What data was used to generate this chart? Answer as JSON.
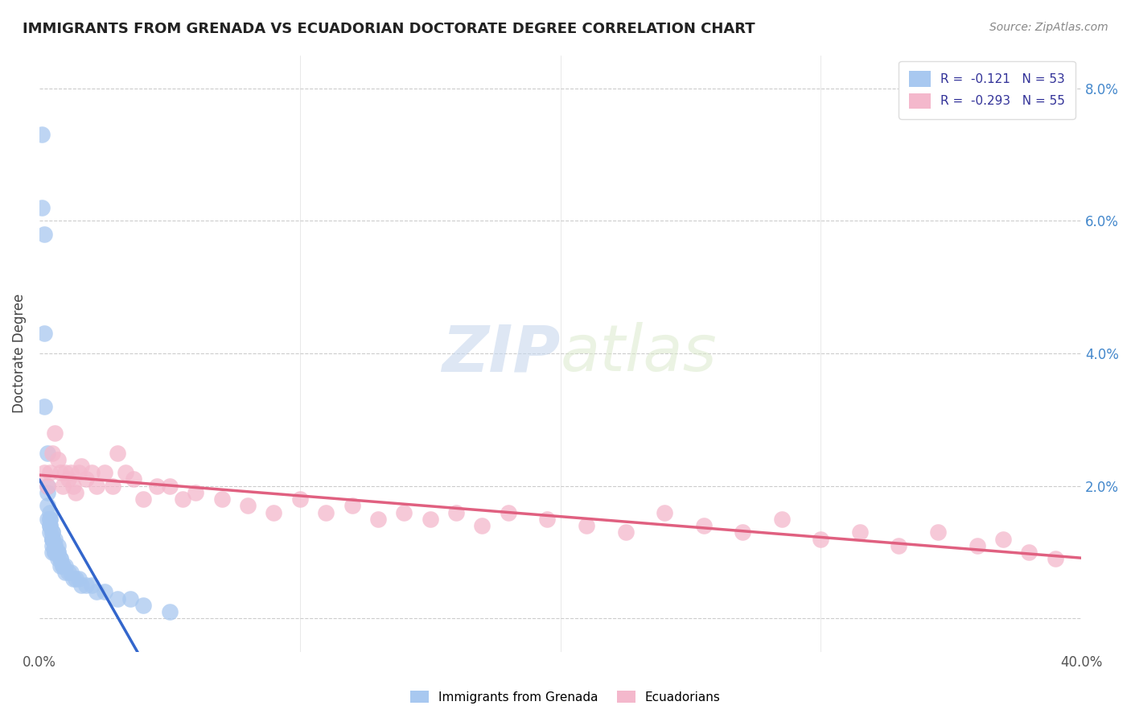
{
  "title": "IMMIGRANTS FROM GRENADA VS ECUADORIAN DOCTORATE DEGREE CORRELATION CHART",
  "source": "Source: ZipAtlas.com",
  "ylabel": "Doctorate Degree",
  "xlim": [
    0.0,
    0.4
  ],
  "ylim": [
    -0.005,
    0.085
  ],
  "yticks": [
    0.0,
    0.02,
    0.04,
    0.06,
    0.08
  ],
  "ytick_labels_right": [
    "",
    "2.0%",
    "4.0%",
    "6.0%",
    "8.0%"
  ],
  "series1_label": "Immigrants from Grenada",
  "series1_R": -0.121,
  "series1_N": 53,
  "series1_color": "#a8c8f0",
  "series1_line_color": "#3366cc",
  "series2_label": "Ecuadorians",
  "series2_R": -0.293,
  "series2_N": 55,
  "series2_color": "#f4b8cc",
  "series2_line_color": "#e06080",
  "watermark_zip": "ZIP",
  "watermark_atlas": "atlas",
  "background_color": "#ffffff",
  "grid_color": "#cccccc",
  "title_color": "#222222",
  "series1_x": [
    0.001,
    0.001,
    0.002,
    0.002,
    0.002,
    0.003,
    0.003,
    0.003,
    0.003,
    0.003,
    0.004,
    0.004,
    0.004,
    0.004,
    0.004,
    0.004,
    0.005,
    0.005,
    0.005,
    0.005,
    0.005,
    0.005,
    0.005,
    0.006,
    0.006,
    0.006,
    0.006,
    0.006,
    0.007,
    0.007,
    0.007,
    0.007,
    0.008,
    0.008,
    0.008,
    0.009,
    0.009,
    0.01,
    0.01,
    0.011,
    0.012,
    0.013,
    0.014,
    0.015,
    0.016,
    0.018,
    0.02,
    0.022,
    0.025,
    0.03,
    0.035,
    0.04,
    0.05
  ],
  "series1_y": [
    0.073,
    0.062,
    0.058,
    0.043,
    0.032,
    0.025,
    0.02,
    0.019,
    0.017,
    0.015,
    0.016,
    0.015,
    0.015,
    0.014,
    0.014,
    0.013,
    0.013,
    0.013,
    0.012,
    0.012,
    0.012,
    0.011,
    0.01,
    0.012,
    0.011,
    0.011,
    0.01,
    0.01,
    0.011,
    0.01,
    0.01,
    0.009,
    0.009,
    0.009,
    0.008,
    0.008,
    0.008,
    0.008,
    0.007,
    0.007,
    0.007,
    0.006,
    0.006,
    0.006,
    0.005,
    0.005,
    0.005,
    0.004,
    0.004,
    0.003,
    0.003,
    0.002,
    0.001
  ],
  "series2_x": [
    0.002,
    0.003,
    0.004,
    0.005,
    0.006,
    0.007,
    0.008,
    0.009,
    0.01,
    0.011,
    0.012,
    0.013,
    0.014,
    0.015,
    0.016,
    0.018,
    0.02,
    0.022,
    0.025,
    0.028,
    0.03,
    0.033,
    0.036,
    0.04,
    0.045,
    0.05,
    0.055,
    0.06,
    0.07,
    0.08,
    0.09,
    0.1,
    0.11,
    0.12,
    0.13,
    0.14,
    0.15,
    0.16,
    0.17,
    0.18,
    0.195,
    0.21,
    0.225,
    0.24,
    0.255,
    0.27,
    0.285,
    0.3,
    0.315,
    0.33,
    0.345,
    0.36,
    0.37,
    0.38,
    0.39
  ],
  "series2_y": [
    0.022,
    0.02,
    0.022,
    0.025,
    0.028,
    0.024,
    0.022,
    0.02,
    0.022,
    0.021,
    0.022,
    0.02,
    0.019,
    0.022,
    0.023,
    0.021,
    0.022,
    0.02,
    0.022,
    0.02,
    0.025,
    0.022,
    0.021,
    0.018,
    0.02,
    0.02,
    0.018,
    0.019,
    0.018,
    0.017,
    0.016,
    0.018,
    0.016,
    0.017,
    0.015,
    0.016,
    0.015,
    0.016,
    0.014,
    0.016,
    0.015,
    0.014,
    0.013,
    0.016,
    0.014,
    0.013,
    0.015,
    0.012,
    0.013,
    0.011,
    0.013,
    0.011,
    0.012,
    0.01,
    0.009
  ]
}
